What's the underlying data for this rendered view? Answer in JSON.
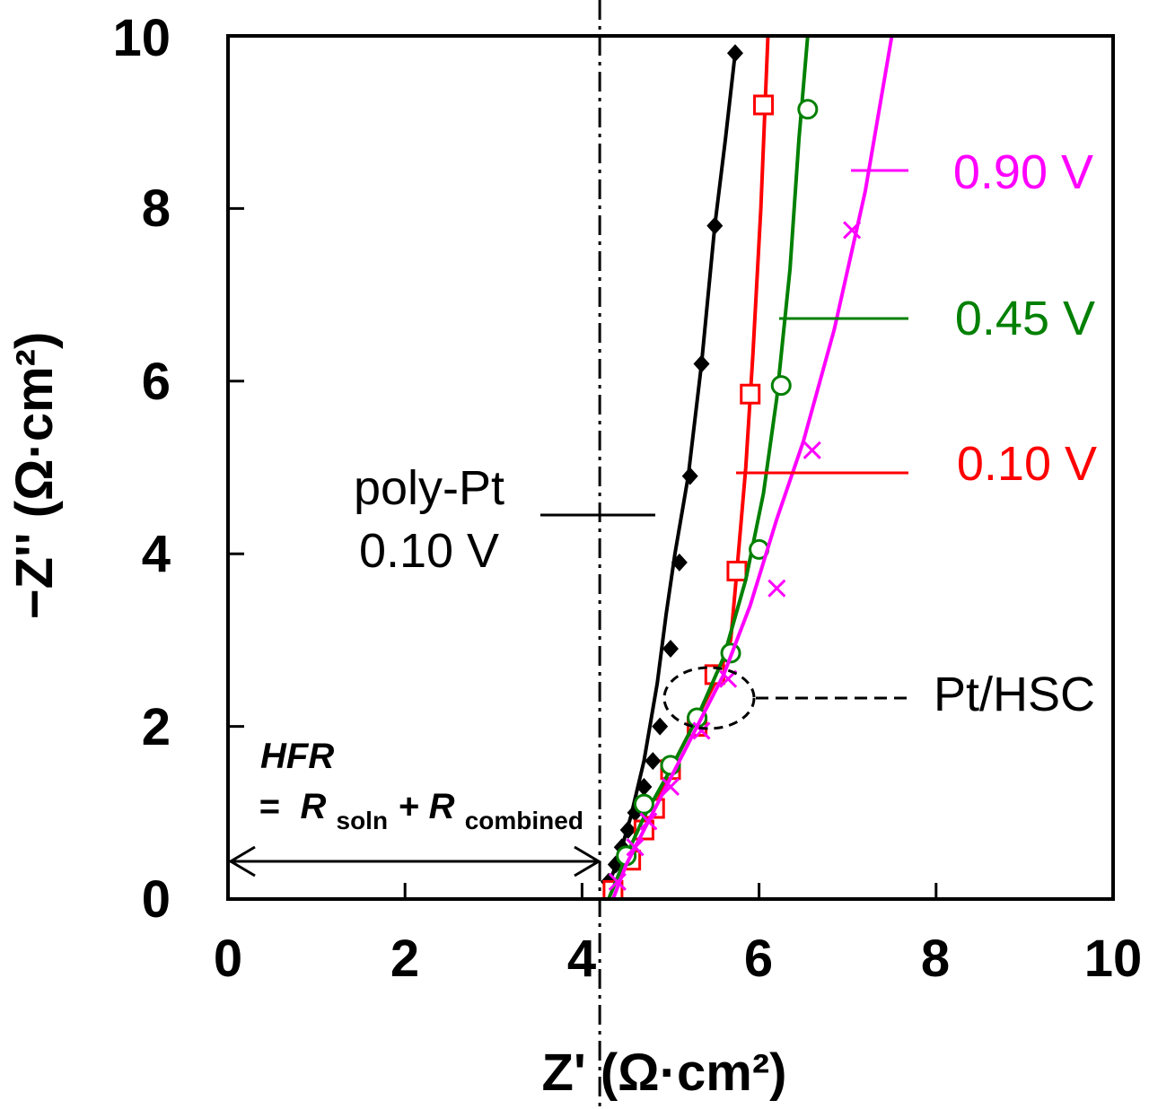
{
  "chart_data": {
    "type": "scatter",
    "xlabel": "Z' (Ω·cm²)",
    "ylabel": "−Z'' (Ω·cm²)",
    "xlim": [
      0,
      10
    ],
    "ylim": [
      0,
      10
    ],
    "xticks": [
      "0",
      "2",
      "4",
      "6",
      "8",
      "10"
    ],
    "yticks": [
      "0",
      "2",
      "4",
      "6",
      "8",
      "10"
    ],
    "grid": false,
    "hfr_value": 4.2,
    "hfr_label": "HFR",
    "hfr_eq": "=",
    "hfr_r": "R",
    "hfr_sub1": "soln",
    "hfr_plus": "+",
    "hfr_sub2": "combined",
    "annotations": {
      "polypt_line1": "poly-Pt",
      "polypt_line2": "0.10 V",
      "pthsc": "Pt/HSC"
    },
    "series": [
      {
        "name": "poly-Pt 0.10 V",
        "label": "poly-Pt 0.10 V",
        "color": "#000000",
        "marker": "diamond-filled",
        "line": [
          [
            4.25,
            0.05
          ],
          [
            4.35,
            0.3
          ],
          [
            4.45,
            0.6
          ],
          [
            4.55,
            0.95
          ],
          [
            4.7,
            1.6
          ],
          [
            4.85,
            2.5
          ],
          [
            4.95,
            3.3
          ],
          [
            5.05,
            4.0
          ],
          [
            5.2,
            4.9
          ],
          [
            5.35,
            6.2
          ],
          [
            5.5,
            7.8
          ],
          [
            5.62,
            8.8
          ],
          [
            5.73,
            9.8
          ]
        ],
        "points": [
          [
            4.3,
            0.2
          ],
          [
            4.38,
            0.4
          ],
          [
            4.45,
            0.6
          ],
          [
            4.52,
            0.8
          ],
          [
            4.6,
            1.0
          ],
          [
            4.7,
            1.3
          ],
          [
            4.8,
            1.6
          ],
          [
            4.88,
            2.0
          ],
          [
            5.0,
            2.9
          ],
          [
            5.1,
            3.9
          ],
          [
            5.22,
            4.9
          ],
          [
            5.35,
            6.2
          ],
          [
            5.5,
            7.8
          ],
          [
            5.73,
            9.8
          ]
        ]
      },
      {
        "name": "Pt/HSC 0.10 V",
        "label": "0.10 V",
        "color": "#ff0000",
        "marker": "square-open",
        "line": [
          [
            4.3,
            0.0
          ],
          [
            4.4,
            0.2
          ],
          [
            4.6,
            0.6
          ],
          [
            4.8,
            1.0
          ],
          [
            5.0,
            1.5
          ],
          [
            5.3,
            2.1
          ],
          [
            5.55,
            2.6
          ],
          [
            5.68,
            3.0
          ],
          [
            5.75,
            3.8
          ],
          [
            5.85,
            5.0
          ],
          [
            5.93,
            6.3
          ],
          [
            6.02,
            8.0
          ],
          [
            6.1,
            10.0
          ]
        ],
        "points": [
          [
            4.35,
            0.1
          ],
          [
            4.55,
            0.45
          ],
          [
            4.7,
            0.8
          ],
          [
            4.82,
            1.05
          ],
          [
            5.0,
            1.5
          ],
          [
            5.3,
            2.0
          ],
          [
            5.5,
            2.6
          ],
          [
            5.75,
            3.8
          ],
          [
            5.9,
            5.85
          ],
          [
            6.05,
            9.2
          ]
        ]
      },
      {
        "name": "Pt/HSC 0.45 V",
        "label": "0.45 V",
        "color": "#008000",
        "marker": "circle-open",
        "line": [
          [
            4.3,
            0.0
          ],
          [
            4.5,
            0.5
          ],
          [
            4.7,
            0.95
          ],
          [
            5.0,
            1.5
          ],
          [
            5.3,
            2.1
          ],
          [
            5.6,
            2.8
          ],
          [
            5.85,
            3.7
          ],
          [
            6.05,
            4.7
          ],
          [
            6.2,
            5.8
          ],
          [
            6.35,
            7.3
          ],
          [
            6.45,
            8.8
          ],
          [
            6.55,
            10.0
          ]
        ],
        "points": [
          [
            4.5,
            0.5
          ],
          [
            4.7,
            1.1
          ],
          [
            5.0,
            1.55
          ],
          [
            5.3,
            2.1
          ],
          [
            5.68,
            2.85
          ],
          [
            6.0,
            4.05
          ],
          [
            6.25,
            5.95
          ],
          [
            6.55,
            9.15
          ]
        ]
      },
      {
        "name": "Pt/HSC 0.90 V",
        "label": "0.90 V",
        "color": "#ff00ff",
        "marker": "x",
        "line": [
          [
            4.35,
            0.0
          ],
          [
            4.5,
            0.4
          ],
          [
            4.75,
            0.9
          ],
          [
            5.0,
            1.4
          ],
          [
            5.3,
            2.0
          ],
          [
            5.6,
            2.6
          ],
          [
            5.9,
            3.4
          ],
          [
            6.2,
            4.4
          ],
          [
            6.5,
            5.3
          ],
          [
            6.85,
            6.6
          ],
          [
            7.2,
            8.2
          ],
          [
            7.5,
            10.0
          ]
        ],
        "points": [
          [
            4.4,
            0.2
          ],
          [
            4.6,
            0.6
          ],
          [
            4.75,
            0.9
          ],
          [
            5.0,
            1.3
          ],
          [
            5.35,
            1.95
          ],
          [
            5.65,
            2.55
          ],
          [
            6.2,
            3.6
          ],
          [
            6.6,
            5.2
          ],
          [
            7.05,
            7.75
          ]
        ]
      }
    ]
  }
}
